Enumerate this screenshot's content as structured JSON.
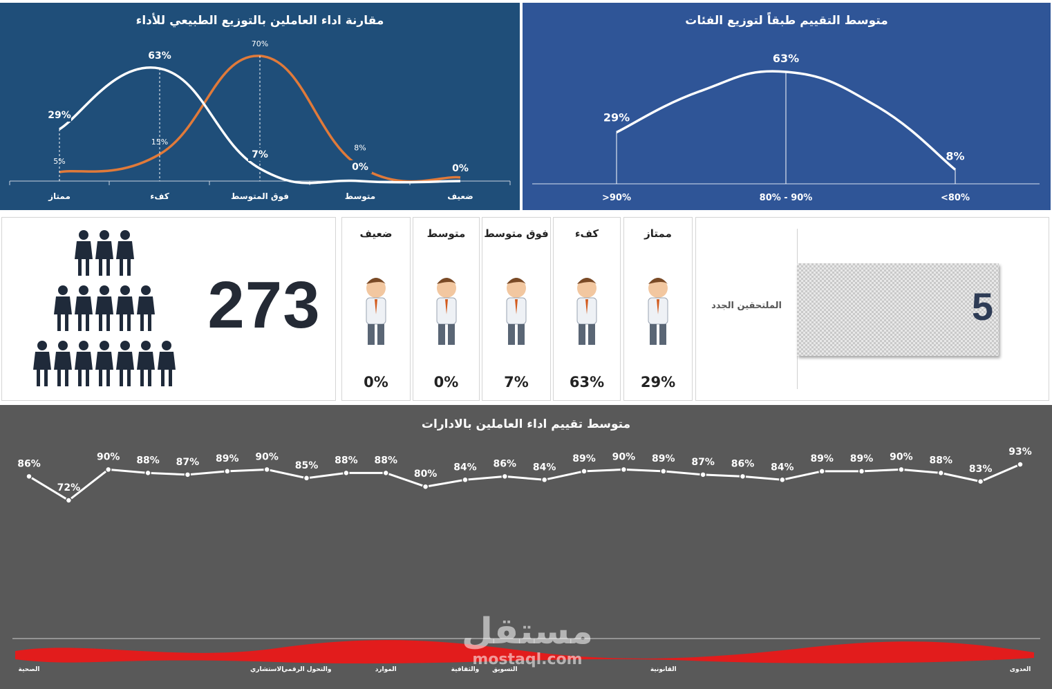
{
  "colors": {
    "left_panel_bg": "#1f4e79",
    "right_panel_bg": "#2f5597",
    "bottom_panel_bg": "#595959",
    "orange_series": "#e07a3a",
    "white_series": "#ffffff",
    "people_icon": "#1f2a3a",
    "redaction": "#e21c1c"
  },
  "kpi": {
    "employees_total": "273",
    "new_joiners_label": "الملتحقين الجدد",
    "new_joiners_value": "5"
  },
  "categories": [
    {
      "label": "ممتاز",
      "pct": "29%",
      "icon": "superhero-employee-icon"
    },
    {
      "label": "كفء",
      "pct": "63%",
      "icon": "pointing-businessman-icon"
    },
    {
      "label": "فوق متوسط",
      "pct": "7%",
      "icon": "running-employee-with-papers-icon"
    },
    {
      "label": "متوسط",
      "pct": "0%",
      "icon": "confused-employee-icon"
    },
    {
      "label": "ضعيف",
      "pct": "0%",
      "icon": "arguing-employees-icon"
    }
  ],
  "watermark": {
    "text": "مستقل",
    "url": "mostaql.com"
  },
  "chart_data": [
    {
      "type": "line",
      "title": "مقارنة اداء العاملين بالتوزيع الطبيعي للأداء",
      "categories": [
        "ممتاز",
        "كفء",
        "فوق المتوسط",
        "متوسط",
        "ضعيف"
      ],
      "series": [
        {
          "values": [
            29,
            63,
            7,
            0,
            0
          ],
          "labels": [
            "29%",
            "63%",
            "7%",
            "0%",
            "0%"
          ],
          "color": "#ffffff"
        },
        {
          "values": [
            5,
            15,
            70,
            8,
            2
          ],
          "labels": [
            "5%",
            "15%",
            "70%",
            "8%",
            "2%"
          ],
          "color": "#e07a3a"
        }
      ],
      "smooth": true,
      "grid": false
    },
    {
      "type": "line",
      "title": "متوسط التقييم طبقاً لتوزيع الفئات",
      "categories": [
        ">90%",
        "80% - 90%",
        "<80%"
      ],
      "series": [
        {
          "values": [
            29,
            63,
            8
          ],
          "labels": [
            "29%",
            "63%",
            "8%"
          ],
          "color": "#ffffff"
        }
      ],
      "smooth": true,
      "grid": false
    },
    {
      "type": "line",
      "title": "متوسط تقييم اداء العاملين بالادارات",
      "series": [
        {
          "values": [
            86,
            72,
            90,
            88,
            87,
            89,
            90,
            85,
            88,
            88,
            80,
            84,
            86,
            84,
            89,
            90,
            89,
            87,
            86,
            84,
            89,
            89,
            90,
            88,
            83,
            93
          ],
          "labels": [
            "86%",
            "72%",
            "90%",
            "88%",
            "87%",
            "89%",
            "90%",
            "85%",
            "88%",
            "88%",
            "80%",
            "84%",
            "86%",
            "84%",
            "89%",
            "90%",
            "89%",
            "87%",
            "86%",
            "84%",
            "89%",
            "89%",
            "90%",
            "88%",
            "83%",
            "93%"
          ],
          "color": "#ffffff"
        }
      ],
      "tick_labels_visible": [
        {
          "index": 0,
          "text": "الصحية"
        },
        {
          "index": 6,
          "text": "الاستشاري"
        },
        {
          "index": 7,
          "text": "والتحول الرقمي"
        },
        {
          "index": 9,
          "text": "الموارد"
        },
        {
          "index": 11,
          "text": "والثقافية"
        },
        {
          "index": 12,
          "text": "التسويق"
        },
        {
          "index": 16,
          "text": "القانونية"
        },
        {
          "index": 25,
          "text": "العدوى"
        }
      ],
      "ylim": [
        60,
        100
      ],
      "grid": false
    }
  ]
}
